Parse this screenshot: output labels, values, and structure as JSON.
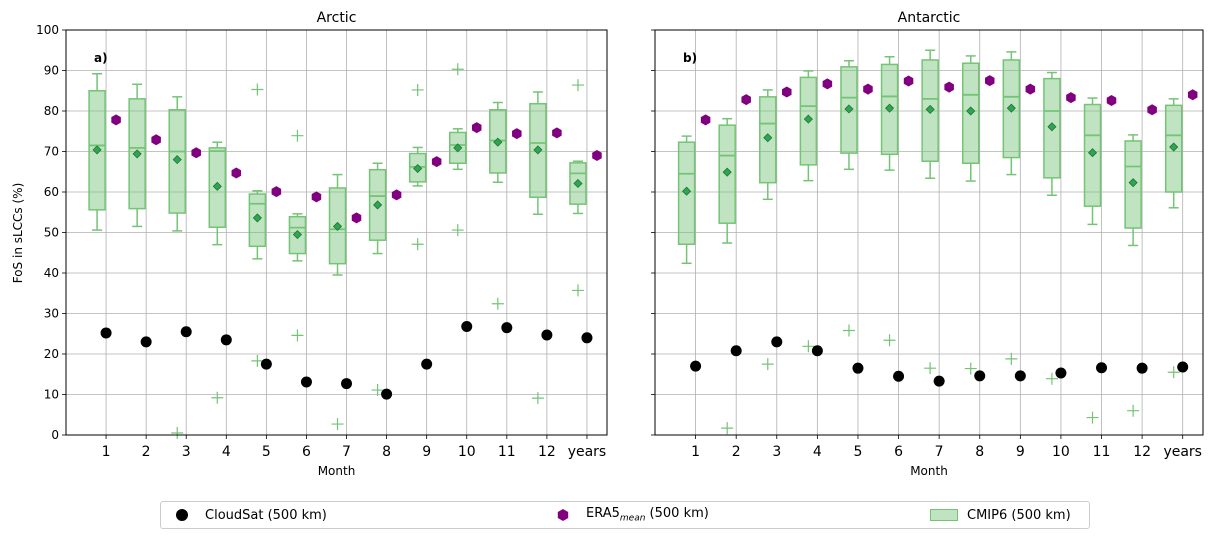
{
  "chart_data": [
    {
      "type": "box",
      "panel_label": "a)",
      "title": "Arctic",
      "xlabel": "Month",
      "ylabel": "FoS in sLCCs (%)",
      "ylim": [
        0,
        100
      ],
      "yticks": [
        0,
        10,
        20,
        30,
        40,
        50,
        60,
        70,
        80,
        90,
        100
      ],
      "categories": [
        "1",
        "2",
        "3",
        "4",
        "5",
        "6",
        "7",
        "8",
        "9",
        "10",
        "11",
        "12",
        "years"
      ],
      "grid": true,
      "series": [
        {
          "name": "CloudSat (500 km)",
          "type": "scatter",
          "values": [
            25.2,
            23.0,
            25.5,
            23.5,
            17.5,
            13.1,
            12.7,
            10.1,
            17.5,
            26.8,
            26.5,
            24.7,
            24.0
          ]
        },
        {
          "name": "ERA5 mean (500 km)",
          "type": "scatter",
          "values": [
            77.8,
            72.9,
            69.7,
            64.7,
            60.1,
            58.8,
            53.6,
            59.3,
            67.5,
            75.9,
            74.4,
            74.6,
            69.0
          ]
        },
        {
          "name": "CMIP6 (500 km)",
          "type": "box",
          "boxes": [
            {
              "whislo": 50.6,
              "q1": 55.6,
              "med": 71.5,
              "q3": 85.0,
              "whishi": 89.2,
              "mean": 70.4,
              "fliers": []
            },
            {
              "whislo": 51.5,
              "q1": 55.9,
              "med": 70.9,
              "q3": 83.0,
              "whishi": 86.6,
              "mean": 69.4,
              "fliers": []
            },
            {
              "whislo": 50.4,
              "q1": 54.8,
              "med": 70.0,
              "q3": 80.3,
              "whishi": 83.5,
              "mean": 68.0,
              "fliers": [
                0.5
              ]
            },
            {
              "whislo": 47.0,
              "q1": 51.3,
              "med": 70.1,
              "q3": 70.9,
              "whishi": 72.3,
              "mean": 61.4,
              "fliers": [
                9.2
              ]
            },
            {
              "whislo": 43.5,
              "q1": 46.6,
              "med": 57.1,
              "q3": 59.5,
              "whishi": 60.3,
              "mean": 53.6,
              "fliers": [
                85.3,
                18.3
              ]
            },
            {
              "whislo": 43.0,
              "q1": 44.8,
              "med": 51.2,
              "q3": 53.9,
              "whishi": 54.6,
              "mean": 49.5,
              "fliers": [
                73.9,
                24.6
              ]
            },
            {
              "whislo": 39.5,
              "q1": 42.3,
              "med": 50.8,
              "q3": 61.0,
              "whishi": 64.3,
              "mean": 51.5,
              "fliers": [
                2.7
              ]
            },
            {
              "whislo": 44.8,
              "q1": 48.1,
              "med": 59.0,
              "q3": 65.5,
              "whishi": 67.1,
              "mean": 56.8,
              "fliers": [
                11.1
              ]
            },
            {
              "whislo": 61.5,
              "q1": 62.5,
              "med": 66.2,
              "q3": 69.5,
              "whishi": 71.0,
              "mean": 65.8,
              "fliers": [
                85.2,
                47.1
              ]
            },
            {
              "whislo": 65.6,
              "q1": 67.1,
              "med": 71.6,
              "q3": 74.7,
              "whishi": 75.6,
              "mean": 70.9,
              "fliers": [
                90.3,
                50.6
              ]
            },
            {
              "whislo": 62.4,
              "q1": 64.7,
              "med": 72.7,
              "q3": 80.3,
              "whishi": 82.1,
              "mean": 72.3,
              "fliers": [
                32.4
              ]
            },
            {
              "whislo": 54.5,
              "q1": 58.7,
              "med": 72.1,
              "q3": 81.8,
              "whishi": 84.7,
              "mean": 70.4,
              "fliers": [
                9.1
              ]
            },
            {
              "whislo": 54.7,
              "q1": 57.0,
              "med": 64.6,
              "q3": 67.2,
              "whishi": 67.6,
              "mean": 62.1,
              "fliers": [
                86.4,
                35.7
              ]
            }
          ]
        }
      ]
    },
    {
      "type": "box",
      "panel_label": "b)",
      "title": "Antarctic",
      "xlabel": "Month",
      "ylim": [
        0,
        100
      ],
      "categories": [
        "1",
        "2",
        "3",
        "4",
        "5",
        "6",
        "7",
        "8",
        "9",
        "10",
        "11",
        "12",
        "years"
      ],
      "grid": true,
      "series": [
        {
          "name": "CloudSat (500 km)",
          "type": "scatter",
          "values": [
            17.0,
            20.8,
            23.0,
            20.8,
            16.5,
            14.5,
            13.3,
            14.6,
            14.6,
            15.3,
            16.6,
            16.5,
            16.8
          ]
        },
        {
          "name": "ERA5 mean (500 km)",
          "type": "scatter",
          "values": [
            77.8,
            82.8,
            84.7,
            86.7,
            85.4,
            87.4,
            85.9,
            87.5,
            85.4,
            83.3,
            82.6,
            80.3,
            84.0
          ]
        },
        {
          "name": "CMIP6 (500 km)",
          "type": "box",
          "boxes": [
            {
              "whislo": 42.4,
              "q1": 47.1,
              "med": 64.5,
              "q3": 72.3,
              "whishi": 73.8,
              "mean": 60.2,
              "fliers": []
            },
            {
              "whislo": 47.4,
              "q1": 52.3,
              "med": 69.0,
              "q3": 76.5,
              "whishi": 78.1,
              "mean": 64.9,
              "fliers": [
                1.7
              ]
            },
            {
              "whislo": 58.2,
              "q1": 62.3,
              "med": 76.9,
              "q3": 83.5,
              "whishi": 85.2,
              "mean": 73.4,
              "fliers": [
                17.5
              ]
            },
            {
              "whislo": 62.8,
              "q1": 66.7,
              "med": 81.2,
              "q3": 88.3,
              "whishi": 89.9,
              "mean": 78.0,
              "fliers": [
                21.9
              ]
            },
            {
              "whislo": 65.6,
              "q1": 69.6,
              "med": 83.3,
              "q3": 90.9,
              "whishi": 92.4,
              "mean": 80.5,
              "fliers": [
                25.8
              ]
            },
            {
              "whislo": 65.4,
              "q1": 69.3,
              "med": 83.6,
              "q3": 91.5,
              "whishi": 93.4,
              "mean": 80.7,
              "fliers": [
                23.4
              ]
            },
            {
              "whislo": 63.4,
              "q1": 67.6,
              "med": 83.0,
              "q3": 92.6,
              "whishi": 95.0,
              "mean": 80.4,
              "fliers": [
                16.5
              ]
            },
            {
              "whislo": 62.7,
              "q1": 67.1,
              "med": 84.0,
              "q3": 91.8,
              "whishi": 93.6,
              "mean": 80.0,
              "fliers": [
                16.4
              ]
            },
            {
              "whislo": 64.3,
              "q1": 68.5,
              "med": 83.5,
              "q3": 92.6,
              "whishi": 94.6,
              "mean": 80.7,
              "fliers": [
                18.8
              ]
            },
            {
              "whislo": 59.2,
              "q1": 63.5,
              "med": 80.0,
              "q3": 88.0,
              "whishi": 89.5,
              "mean": 76.1,
              "fliers": [
                13.9
              ]
            },
            {
              "whislo": 52.0,
              "q1": 56.5,
              "med": 74.0,
              "q3": 81.6,
              "whishi": 83.2,
              "mean": 69.7,
              "fliers": [
                4.3
              ]
            },
            {
              "whislo": 46.8,
              "q1": 51.1,
              "med": 66.3,
              "q3": 72.6,
              "whishi": 74.1,
              "mean": 62.3,
              "fliers": [
                6.0
              ]
            },
            {
              "whislo": 56.1,
              "q1": 60.0,
              "med": 74.0,
              "q3": 81.4,
              "whishi": 83.0,
              "mean": 71.1,
              "fliers": [
                15.5
              ]
            }
          ]
        }
      ]
    }
  ],
  "colors": {
    "cloudsat": "#000000",
    "era5": "#800080",
    "cmip6_face": "#74c476",
    "cmip6_edge": "#74c476",
    "mean_marker": "#31a354",
    "grid": "#b0b0b0"
  },
  "legend": {
    "cloudsat_label": "CloudSat (500 km)",
    "era5_label_main": "ERA5",
    "era5_label_sub": "mean",
    "era5_label_rest": " (500 km)",
    "cmip6_label": "CMIP6 (500 km)"
  }
}
